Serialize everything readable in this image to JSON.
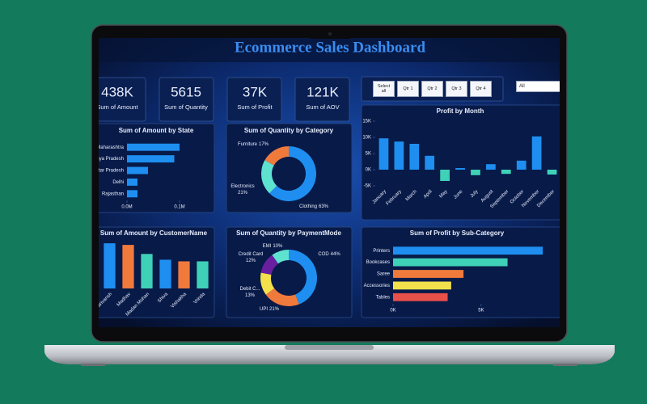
{
  "header": {
    "title": "Ecommerce Sales Dashboard"
  },
  "kpis": [
    {
      "value": "438K",
      "label": "Sum of Amount"
    },
    {
      "value": "5615",
      "label": "Sum of Quantity"
    },
    {
      "value": "37K",
      "label": "Sum of Profit"
    },
    {
      "value": "121K",
      "label": "Sum of AOV"
    }
  ],
  "filters": {
    "buttons": [
      "Select all",
      "Qtr 1",
      "Qtr 2",
      "Qtr 3",
      "Qtr 4"
    ],
    "dropdown": "All"
  },
  "chart_data": [
    {
      "type": "bar",
      "horizontal": true,
      "title": "Sum of Amount by State",
      "categories": [
        "Maharashtra",
        "Madhya Pradesh",
        "Uttar Pradesh",
        "Delhi",
        "Rajasthan"
      ],
      "values": [
        0.1,
        0.09,
        0.04,
        0.02,
        0.02
      ],
      "color": "#1e8ff0",
      "xlim": [
        0,
        0.1
      ],
      "xticks": [
        {
          "value": 0,
          "label": "0.0M"
        },
        {
          "value": 0.1,
          "label": "0.1M"
        }
      ]
    },
    {
      "type": "pie",
      "donut": true,
      "title": "Sum of Quantity by Category",
      "categories": [
        "Furniture",
        "Electronics",
        "Clothing"
      ],
      "values": [
        17,
        21,
        63
      ],
      "value_labels": [
        "17%",
        "21%",
        "63%"
      ],
      "colors": [
        "#f07a3c",
        "#5de3d0",
        "#1e8ff0"
      ]
    },
    {
      "type": "bar",
      "title": "Profit by Month",
      "categories": [
        "January",
        "February",
        "March",
        "April",
        "May",
        "June",
        "July",
        "August",
        "September",
        "October",
        "November",
        "December"
      ],
      "values": [
        9.7,
        8.7,
        8,
        4.3,
        -3.5,
        0.5,
        -1.7,
        1.7,
        -1.3,
        2.8,
        10.3,
        -1.5
      ],
      "color": "#1e8ff0",
      "negative_color": "#3fd1b8",
      "ylim": [
        -5,
        15
      ],
      "yticks": [
        {
          "value": -5,
          "label": "-5K"
        },
        {
          "value": 0,
          "label": "0K"
        },
        {
          "value": 5,
          "label": "5K"
        },
        {
          "value": 10,
          "label": "10K"
        },
        {
          "value": 15,
          "label": "15K"
        }
      ]
    },
    {
      "type": "bar",
      "title": "Sum of Amount by CustomerName",
      "categories": [
        "Harivansh",
        "Madhav",
        "Madan Mohan",
        "Shiva",
        "Vishakha",
        "Vrinda"
      ],
      "values": [
        55,
        53,
        42,
        35,
        33,
        33
      ],
      "colors": [
        "#1e8ff0",
        "#f07a3c",
        "#3fd1b8",
        "#1e8ff0",
        "#f07a3c",
        "#3fd1b8"
      ],
      "ylim": [
        0,
        60
      ]
    },
    {
      "type": "pie",
      "donut": true,
      "title": "Sum of Quantity by PaymentMode",
      "categories": [
        "COD",
        "UPI",
        "Debit C...",
        "Credit Card",
        "EMI"
      ],
      "values": [
        44,
        21,
        13,
        12,
        10
      ],
      "value_labels": [
        "44%",
        "21%",
        "13%",
        "12%",
        "10%"
      ],
      "colors": [
        "#1e8ff0",
        "#f07a3c",
        "#f2e14c",
        "#6a1fa0",
        "#5de3d0"
      ]
    },
    {
      "type": "bar",
      "horizontal": true,
      "title": "Sum of Profit by Sub-Category",
      "categories": [
        "Printers",
        "Bookcases",
        "Saree",
        "Accessories",
        "Tables"
      ],
      "values": [
        8.5,
        6.5,
        4,
        3.3,
        3.1
      ],
      "colors": [
        "#1e8ff0",
        "#3fd1b8",
        "#f07a3c",
        "#f2e14c",
        "#e8504a"
      ],
      "xlim": [
        0,
        9
      ],
      "xticks": [
        {
          "value": 0,
          "label": "0K"
        },
        {
          "value": 5,
          "label": "5K"
        }
      ]
    }
  ]
}
